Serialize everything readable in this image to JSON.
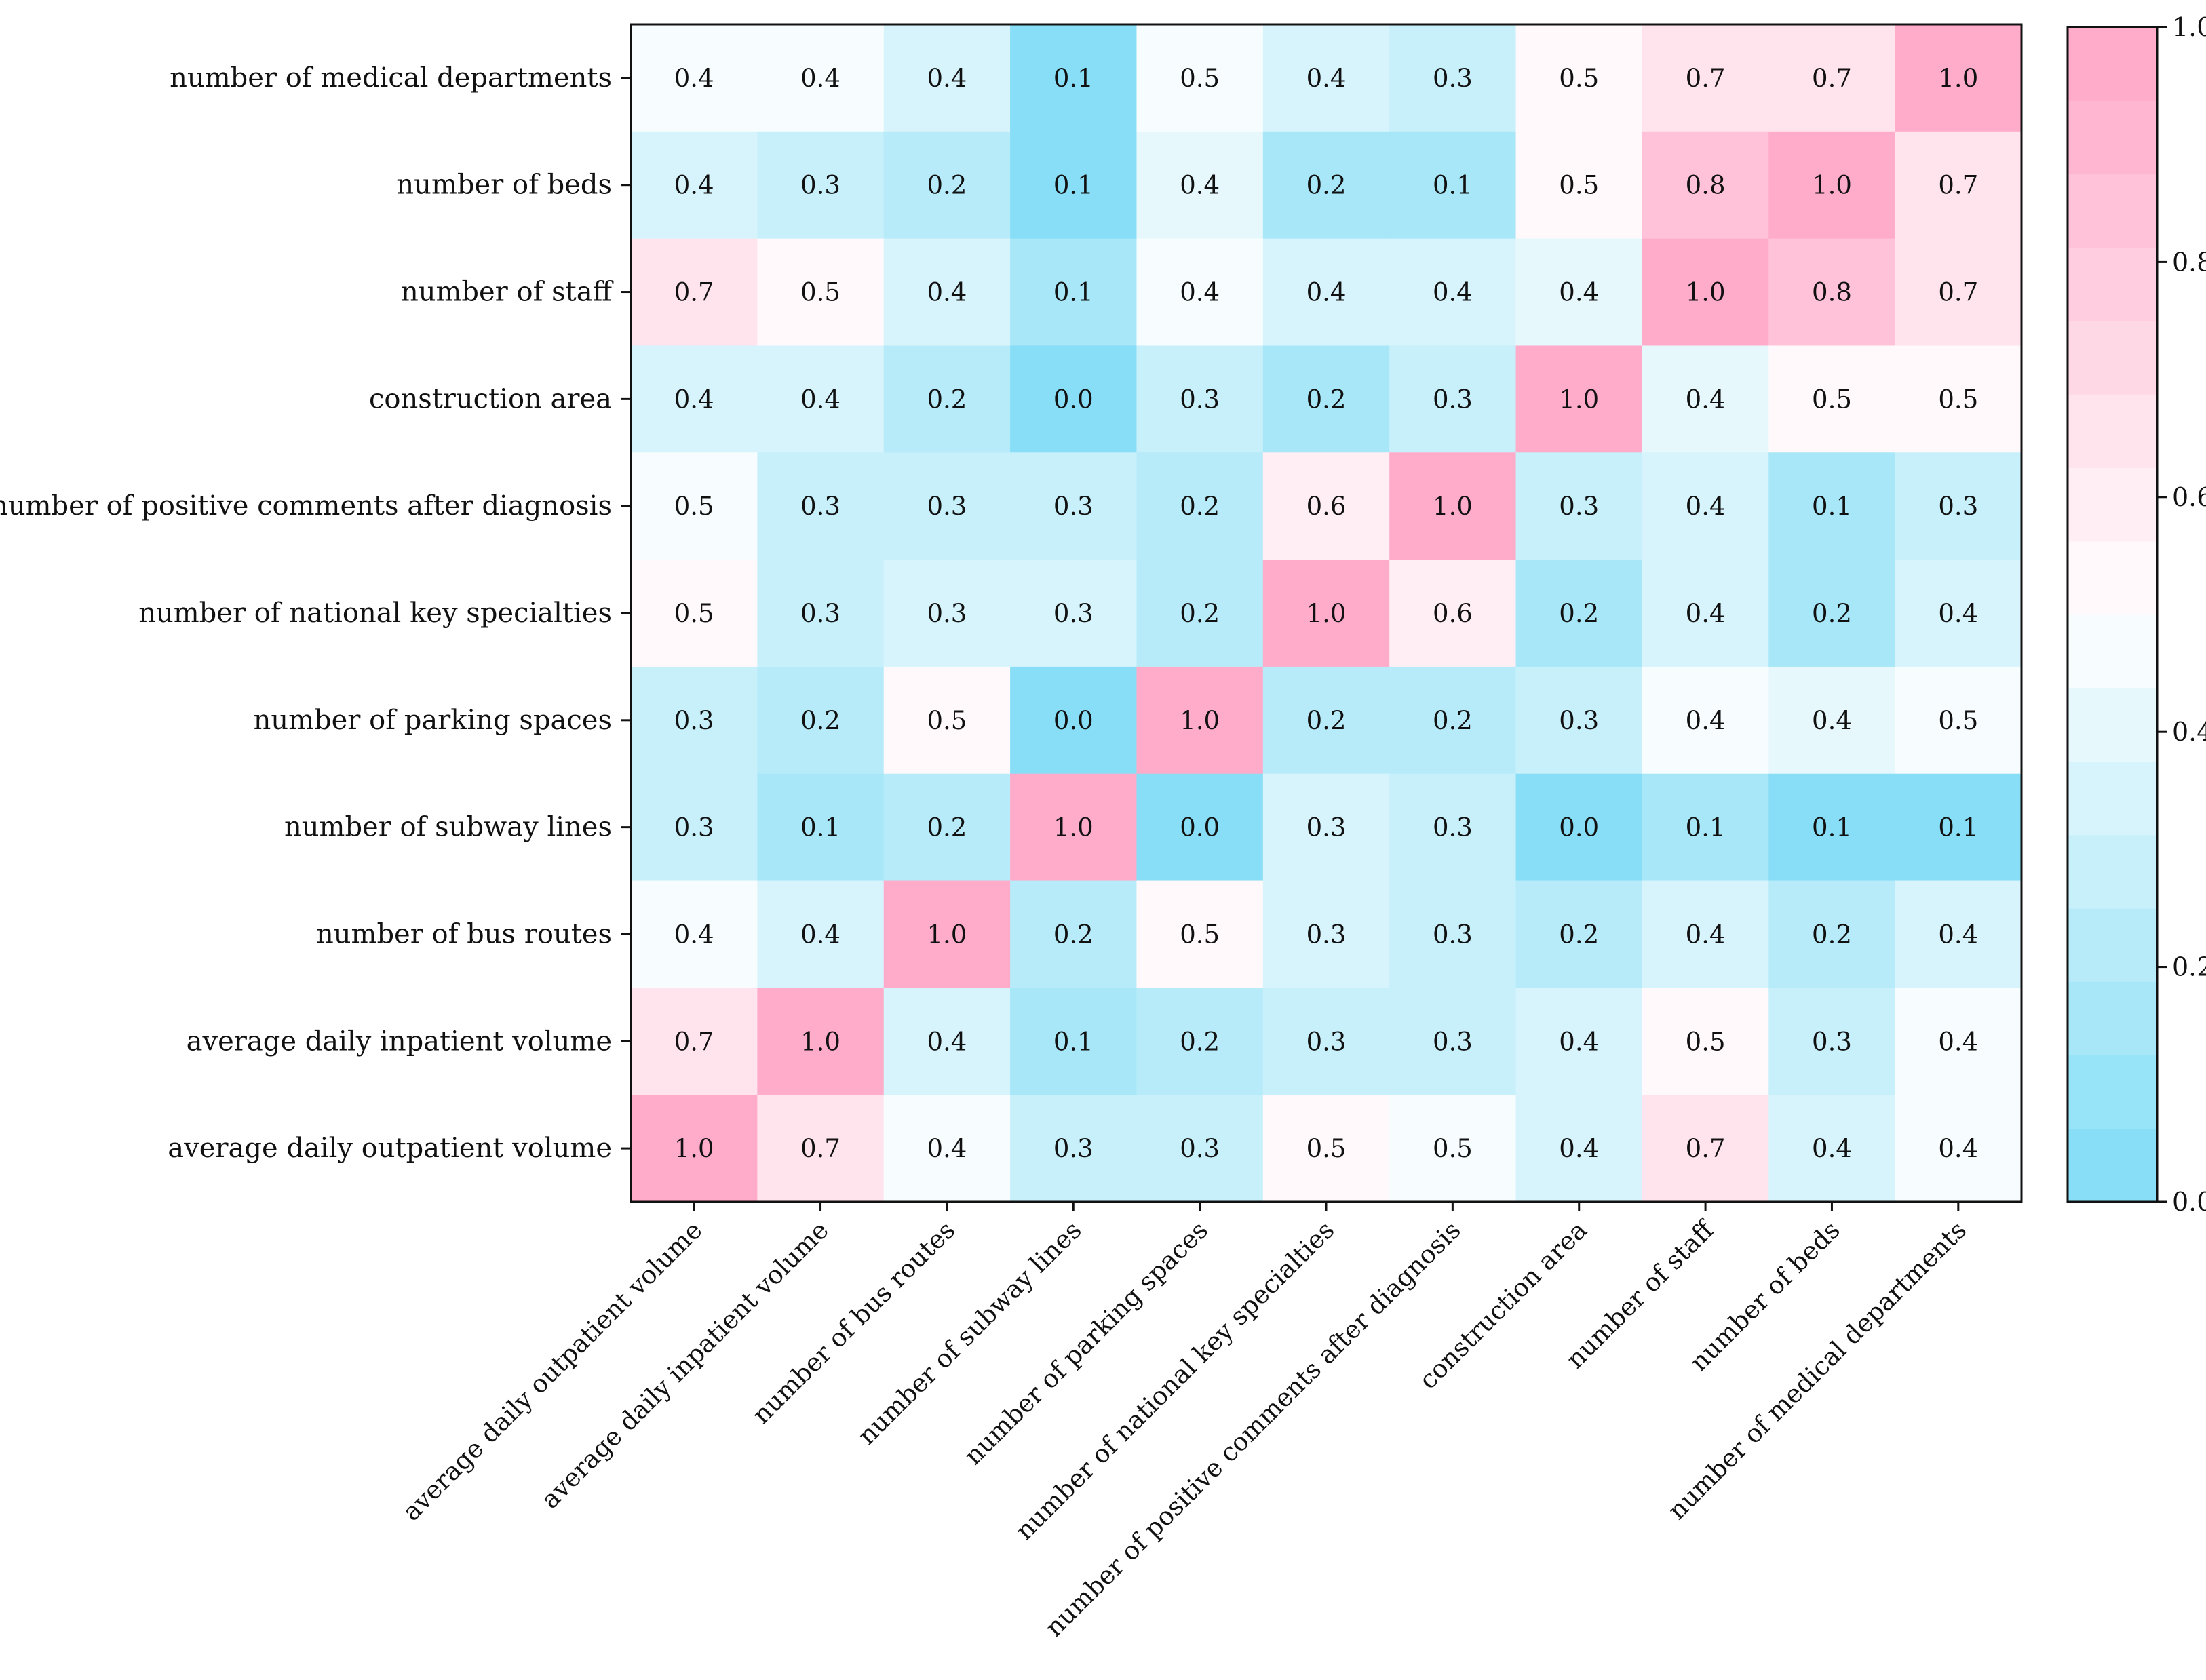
{
  "chart_data": {
    "type": "heatmap",
    "title": "",
    "xlabel": "",
    "ylabel": "",
    "columns": [
      "average daily outpatient volume",
      "average daily inpatient volume",
      "number of bus routes",
      "number of subway lines",
      "number of parking spaces",
      "number of national key specialties",
      "number of positive comments after diagnosis",
      "construction area",
      "number of staff",
      "number of beds",
      "number of medical departments"
    ],
    "rows": [
      "number of medical departments",
      "number of beds",
      "number of staff",
      "construction area",
      "number of positive comments after diagnosis",
      "number of national key specialties",
      "number of parking spaces",
      "number of subway lines",
      "number of bus routes",
      "average daily inpatient volume",
      "average daily outpatient volume"
    ],
    "values": [
      [
        0.44,
        0.45,
        0.36,
        0.05,
        0.47,
        0.36,
        0.31,
        0.55,
        0.67,
        0.65,
        1.0
      ],
      [
        0.36,
        0.31,
        0.23,
        0.05,
        0.43,
        0.18,
        0.14,
        0.5,
        0.82,
        1.0,
        0.65
      ],
      [
        0.67,
        0.5,
        0.37,
        0.14,
        0.44,
        0.36,
        0.36,
        0.43,
        1.0,
        0.82,
        0.67
      ],
      [
        0.36,
        0.37,
        0.23,
        0.03,
        0.27,
        0.18,
        0.25,
        1.0,
        0.43,
        0.5,
        0.55
      ],
      [
        0.46,
        0.29,
        0.29,
        0.29,
        0.22,
        0.6,
        1.0,
        0.25,
        0.36,
        0.14,
        0.31
      ],
      [
        0.5,
        0.29,
        0.32,
        0.32,
        0.22,
        1.0,
        0.6,
        0.18,
        0.36,
        0.18,
        0.36
      ],
      [
        0.27,
        0.22,
        0.5,
        0.02,
        1.0,
        0.22,
        0.22,
        0.27,
        0.44,
        0.43,
        0.47
      ],
      [
        0.27,
        0.14,
        0.23,
        1.0,
        0.02,
        0.32,
        0.29,
        0.03,
        0.14,
        0.05,
        0.05
      ],
      [
        0.44,
        0.36,
        1.0,
        0.23,
        0.5,
        0.32,
        0.29,
        0.23,
        0.37,
        0.23,
        0.36
      ],
      [
        0.65,
        1.0,
        0.36,
        0.14,
        0.22,
        0.29,
        0.29,
        0.37,
        0.5,
        0.31,
        0.45
      ],
      [
        1.0,
        0.65,
        0.44,
        0.27,
        0.27,
        0.5,
        0.46,
        0.36,
        0.67,
        0.36,
        0.44
      ]
    ],
    "labels": [
      [
        "0.4",
        "0.4",
        "0.4",
        "0.1",
        "0.5",
        "0.4",
        "0.3",
        "0.5",
        "0.7",
        "0.7",
        "1.0"
      ],
      [
        "0.4",
        "0.3",
        "0.2",
        "0.1",
        "0.4",
        "0.2",
        "0.1",
        "0.5",
        "0.8",
        "1.0",
        "0.7"
      ],
      [
        "0.7",
        "0.5",
        "0.4",
        "0.1",
        "0.4",
        "0.4",
        "0.4",
        "0.4",
        "1.0",
        "0.8",
        "0.7"
      ],
      [
        "0.4",
        "0.4",
        "0.2",
        "0.0",
        "0.3",
        "0.2",
        "0.3",
        "1.0",
        "0.4",
        "0.5",
        "0.5"
      ],
      [
        "0.5",
        "0.3",
        "0.3",
        "0.3",
        "0.2",
        "0.6",
        "1.0",
        "0.3",
        "0.4",
        "0.1",
        "0.3"
      ],
      [
        "0.5",
        "0.3",
        "0.3",
        "0.3",
        "0.2",
        "1.0",
        "0.6",
        "0.2",
        "0.4",
        "0.2",
        "0.4"
      ],
      [
        "0.3",
        "0.2",
        "0.5",
        "0.0",
        "1.0",
        "0.2",
        "0.2",
        "0.3",
        "0.4",
        "0.4",
        "0.5"
      ],
      [
        "0.3",
        "0.1",
        "0.2",
        "1.0",
        "0.0",
        "0.3",
        "0.3",
        "0.0",
        "0.1",
        "0.1",
        "0.1"
      ],
      [
        "0.4",
        "0.4",
        "1.0",
        "0.2",
        "0.5",
        "0.3",
        "0.3",
        "0.2",
        "0.4",
        "0.2",
        "0.4"
      ],
      [
        "0.7",
        "1.0",
        "0.4",
        "0.1",
        "0.2",
        "0.3",
        "0.3",
        "0.4",
        "0.5",
        "0.3",
        "0.4"
      ],
      [
        "1.0",
        "0.7",
        "0.4",
        "0.3",
        "0.3",
        "0.5",
        "0.5",
        "0.4",
        "0.7",
        "0.4",
        "0.4"
      ]
    ],
    "colorbar": {
      "range": [
        0.0,
        1.0
      ],
      "ticks": [
        "0.0",
        "0.2",
        "0.4",
        "0.6",
        "0.8",
        "1.0"
      ],
      "bins": 16,
      "low_color": "#7fdcf5",
      "mid_color": "#ffffff",
      "high_color": "#ffa6c6"
    }
  }
}
